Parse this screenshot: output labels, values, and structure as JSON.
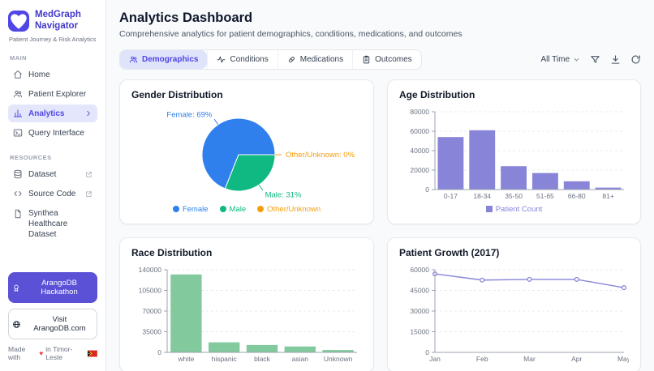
{
  "app": {
    "name_line1": "MedGraph",
    "name_line2": "Navigator",
    "tagline": "Patient Journey & Risk Analytics"
  },
  "sidebar": {
    "section_main": "MAIN",
    "nav": [
      {
        "label": "Home",
        "active": false
      },
      {
        "label": "Patient Explorer",
        "active": false
      },
      {
        "label": "Analytics",
        "active": true
      },
      {
        "label": "Query Interface",
        "active": false
      }
    ],
    "section_resources": "RESOURCES",
    "resources": [
      {
        "label": "Dataset",
        "external": true
      },
      {
        "label": "Source Code",
        "external": true
      },
      {
        "label": "Synthea Healthcare Dataset",
        "external": false
      }
    ],
    "hackathon_button": "ArangoDB Hackathon",
    "visit_button": "Visit ArangoDB.com",
    "made_with": {
      "prefix": "Made with",
      "heart": "♥",
      "suffix": "in Timor-Leste",
      "flag": "🇹🇱"
    }
  },
  "header": {
    "title": "Analytics Dashboard",
    "subtitle": "Comprehensive analytics for patient demographics, conditions, medications, and outcomes"
  },
  "tabs": [
    {
      "label": "Demographics",
      "active": true
    },
    {
      "label": "Conditions",
      "active": false
    },
    {
      "label": "Medications",
      "active": false
    },
    {
      "label": "Outcomes",
      "active": false
    }
  ],
  "toolbar": {
    "time_range": "All Time"
  },
  "chart_data": [
    {
      "id": "gender",
      "type": "pie",
      "title": "Gender Distribution",
      "labels": [
        "Female",
        "Male",
        "Other/Unknown"
      ],
      "values": [
        69,
        31,
        0
      ],
      "unit": "%",
      "colors": [
        "#2f80ed",
        "#10b981",
        "#f59e0b"
      ],
      "legend_position": "bottom"
    },
    {
      "id": "age",
      "type": "bar",
      "title": "Age Distribution",
      "categories": [
        "0-17",
        "18-34",
        "35-50",
        "51-65",
        "66-80",
        "81+"
      ],
      "values": [
        54000,
        61000,
        24000,
        17000,
        8500,
        2000
      ],
      "ylim": [
        0,
        80000
      ],
      "yticks": [
        0,
        20000,
        40000,
        60000,
        80000
      ],
      "color": "#8884d8",
      "legend": "Patient Count",
      "grid": true
    },
    {
      "id": "race",
      "type": "bar",
      "title": "Race Distribution",
      "categories": [
        "white",
        "hispanic",
        "black",
        "asian",
        "Unknown"
      ],
      "values": [
        132000,
        17000,
        12500,
        10000,
        4000
      ],
      "ylim": [
        0,
        140000
      ],
      "yticks": [
        0,
        35000,
        70000,
        105000,
        140000
      ],
      "color": "#82ca9d",
      "grid": true
    },
    {
      "id": "growth",
      "type": "line",
      "title": "Patient Growth (2017)",
      "categories": [
        "Jan",
        "Feb",
        "Mar",
        "Apr",
        "May"
      ],
      "values": [
        57000,
        52500,
        53000,
        53000,
        47000
      ],
      "ylim": [
        0,
        60000
      ],
      "yticks": [
        0,
        15000,
        30000,
        45000,
        60000
      ],
      "color": "#8884d8",
      "grid": true
    }
  ]
}
